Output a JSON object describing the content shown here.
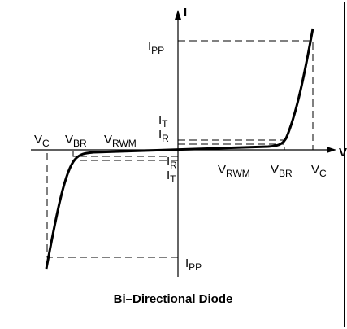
{
  "axis_labels": {
    "current": "I",
    "voltage": "V"
  },
  "labels": [
    {
      "text": "I",
      "sub": "PP"
    },
    {
      "text": "I",
      "sub": "T"
    },
    {
      "text": "I",
      "sub": "R"
    },
    {
      "text": "V",
      "sub": "C"
    },
    {
      "text": "V",
      "sub": "BR"
    },
    {
      "text": "V",
      "sub": "RWM"
    },
    {
      "text": "I",
      "sub": "R"
    },
    {
      "text": "I",
      "sub": "T"
    },
    {
      "text": "V",
      "sub": "RWM"
    },
    {
      "text": "V",
      "sub": "BR"
    },
    {
      "text": "V",
      "sub": "C"
    },
    {
      "text": "I",
      "sub": "PP"
    }
  ],
  "caption": "Bi–Directional Diode"
}
